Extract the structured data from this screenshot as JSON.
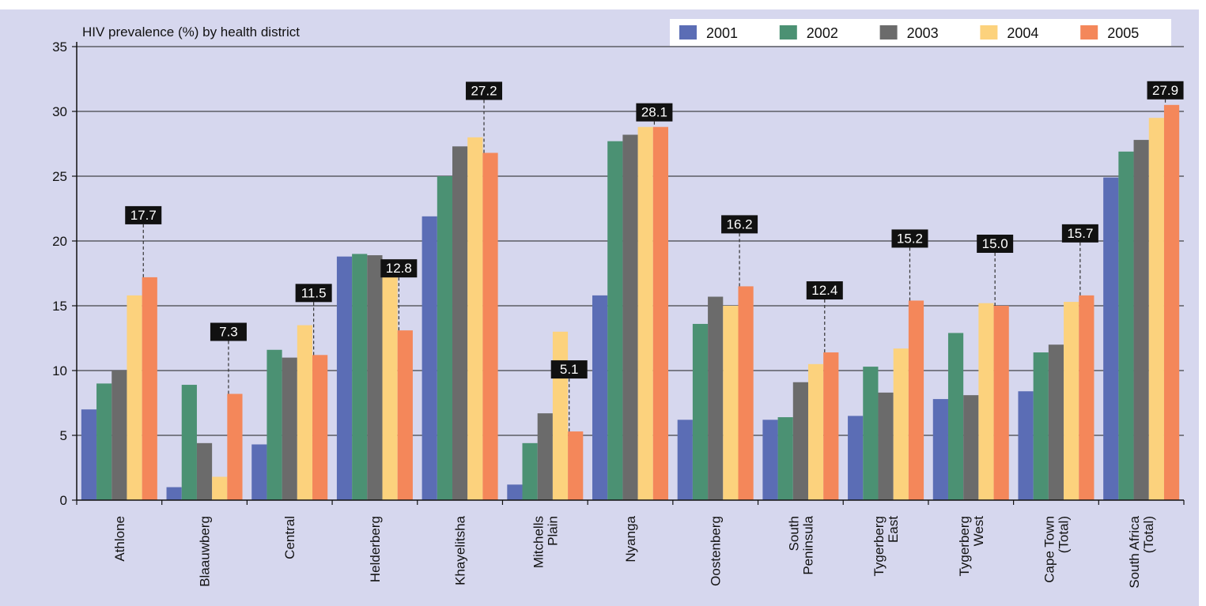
{
  "chart_data": {
    "type": "bar",
    "title": "HIV prevalence (%) by health district",
    "xlabel": "",
    "ylabel": "",
    "ylim": [
      0,
      35
    ],
    "yticks": [
      0,
      5,
      10,
      15,
      20,
      25,
      30,
      35
    ],
    "grid": true,
    "legend_position": "top-right",
    "categories": [
      [
        "Athlone"
      ],
      [
        "Blaauwberg"
      ],
      [
        "Central"
      ],
      [
        "Helderberg"
      ],
      [
        "Khayelitsha"
      ],
      [
        "Mitchells",
        "Plain"
      ],
      [
        "Nyanga"
      ],
      [
        "Oostenberg"
      ],
      [
        "South",
        "Peninsula"
      ],
      [
        "Tygerberg",
        "East"
      ],
      [
        "Tygerberg",
        "West"
      ],
      [
        "Cape Town",
        "(Total)"
      ],
      [
        "South Africa",
        "(Total)"
      ]
    ],
    "series": [
      {
        "name": "2001",
        "color": "#5b6db5",
        "values": [
          7.0,
          1.0,
          4.3,
          18.8,
          21.9,
          1.2,
          15.8,
          6.2,
          6.2,
          6.5,
          7.8,
          8.4,
          24.9
        ]
      },
      {
        "name": "2002",
        "color": "#4b9173",
        "values": [
          9.0,
          8.9,
          11.6,
          19.0,
          25.0,
          4.4,
          27.7,
          13.6,
          6.4,
          10.3,
          12.9,
          11.4,
          26.9
        ]
      },
      {
        "name": "2003",
        "color": "#6b6b6b",
        "values": [
          10.0,
          4.4,
          11.0,
          18.9,
          27.3,
          6.7,
          28.2,
          15.7,
          9.1,
          8.3,
          8.1,
          12.0,
          27.8
        ]
      },
      {
        "name": "2004",
        "color": "#fcd27d",
        "values": [
          15.8,
          1.8,
          13.5,
          18.5,
          28.0,
          13.0,
          28.8,
          15.0,
          10.5,
          11.7,
          15.2,
          15.3,
          29.5
        ]
      },
      {
        "name": "2005",
        "color": "#f4875a",
        "values": [
          17.2,
          8.2,
          11.2,
          13.1,
          26.8,
          5.3,
          28.8,
          16.5,
          11.4,
          15.4,
          15.0,
          15.8,
          30.5
        ]
      }
    ],
    "annotations": [
      "17.7",
      "7.3",
      "11.5",
      "12.8",
      "27.2",
      "5.1",
      "28.1",
      "16.2",
      "12.4",
      "15.2",
      "15.0",
      "15.7",
      "27.9"
    ],
    "colors": {
      "background": "#d6d7ee",
      "grid": "#1f1f1f",
      "annotation_box": "#111111"
    }
  }
}
